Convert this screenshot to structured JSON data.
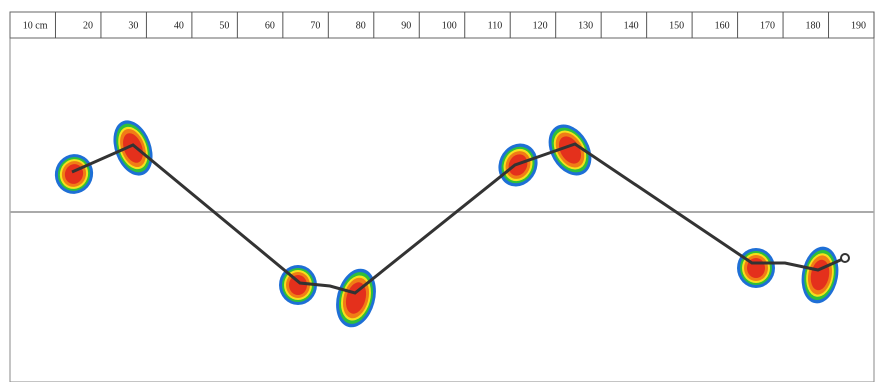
{
  "ruler": {
    "labels": [
      "10 cm",
      "20",
      "30",
      "40",
      "50",
      "60",
      "70",
      "80",
      "90",
      "100",
      "110",
      "120",
      "130",
      "140",
      "150",
      "160",
      "170",
      "180",
      "190"
    ]
  }
}
